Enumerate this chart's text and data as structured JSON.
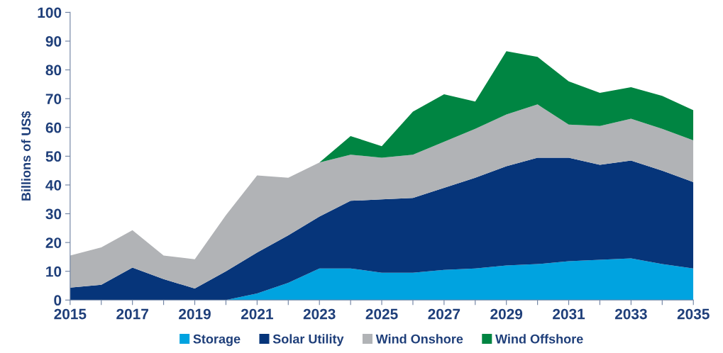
{
  "chart_data": {
    "type": "area",
    "stacked": true,
    "ylabel": "Billions of US$",
    "x": [
      2015,
      2016,
      2017,
      2018,
      2019,
      2020,
      2021,
      2022,
      2023,
      2024,
      2025,
      2026,
      2027,
      2028,
      2029,
      2030,
      2031,
      2032,
      2033,
      2034,
      2035
    ],
    "series": [
      {
        "name": "Storage",
        "color": "#00a3e0",
        "values": [
          0,
          0,
          0,
          0,
          0,
          0,
          2.3,
          6,
          11,
          11,
          9.5,
          9.5,
          10.5,
          11,
          12,
          12.5,
          13.5,
          14,
          14.5,
          12.5,
          11
        ]
      },
      {
        "name": "Solar Utility",
        "color": "#06357a",
        "values": [
          4.3,
          5.3,
          11.3,
          7.3,
          4,
          10,
          14.2,
          16.5,
          18,
          23.5,
          25.5,
          26,
          28.5,
          31.5,
          34.5,
          37,
          36,
          33,
          34,
          32.5,
          30
        ]
      },
      {
        "name": "Wind Onshore",
        "color": "#b1b3b6",
        "values": [
          11.2,
          13,
          13,
          8.2,
          10.2,
          19.5,
          26.8,
          20,
          18.8,
          16,
          14.5,
          15,
          16,
          17,
          18,
          18.5,
          11.5,
          13.5,
          14.5,
          14.5,
          14.5
        ]
      },
      {
        "name": "Wind Offshore",
        "color": "#008542",
        "values": [
          0,
          0,
          0,
          0,
          0,
          0,
          0,
          0,
          0,
          6.5,
          4,
          15,
          16.5,
          9.5,
          22,
          16.5,
          15,
          11.5,
          11,
          11.5,
          10.5
        ]
      }
    ],
    "xlim": [
      2015,
      2035
    ],
    "xticks": [
      2015,
      {
        "value": 2016,
        "label": null
      },
      2017,
      {
        "value": 2018,
        "label": null
      },
      2019,
      {
        "value": 2020,
        "label": null
      },
      2021,
      {
        "value": 2022,
        "label": null
      },
      2023,
      {
        "value": 2024,
        "label": null
      },
      2025,
      {
        "value": 2026,
        "label": null
      },
      2027,
      {
        "value": 2028,
        "label": null
      },
      2029,
      {
        "value": 2030,
        "label": null
      },
      2031,
      {
        "value": 2032,
        "label": null
      },
      2033,
      {
        "value": 2034,
        "label": null
      },
      2035
    ],
    "ylim": [
      0,
      100
    ],
    "yticks": [
      0,
      10,
      20,
      30,
      40,
      50,
      60,
      70,
      80,
      90,
      100
    ],
    "grid": false,
    "legend": "bottom"
  }
}
